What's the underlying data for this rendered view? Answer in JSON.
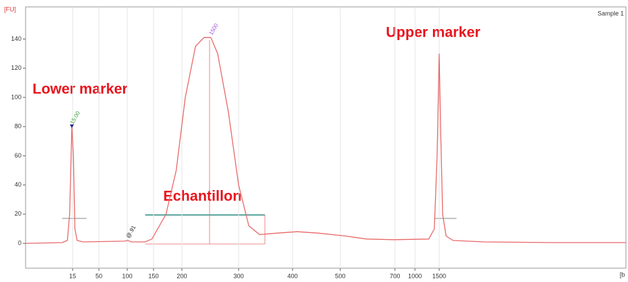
{
  "chart_data": {
    "type": "line",
    "y_label": "[FU]",
    "x_label": "[b",
    "sample": "Sample 1",
    "annotations": [
      "Lower marker",
      "Echantillon",
      "Upper marker"
    ],
    "peak_labels": [
      "15.00",
      "@.91",
      "1500"
    ],
    "xlim": [
      -48,
      5360
    ],
    "xticks": [
      15,
      50,
      100,
      150,
      200,
      300,
      400,
      500,
      700,
      1000,
      1500
    ],
    "ylim": [
      -17,
      162
    ],
    "yticks": [
      0,
      20,
      40,
      60,
      80,
      100,
      120,
      140
    ],
    "grid": true,
    "series": [
      {
        "name": "Sample 1",
        "color": "#e86a6a",
        "x": [
          -48,
          1,
          8,
          11,
          14,
          16,
          18,
          21,
          29,
          95,
          101,
          108,
          134,
          147,
          172,
          190,
          206,
          224,
          239,
          251,
          263,
          282,
          300,
          319,
          339,
          371,
          410,
          454,
          520,
          596,
          697,
          1286,
          1400,
          1457,
          1500,
          1529,
          1571,
          1643,
          1786,
          2429,
          3857,
          5360
        ],
        "values": [
          0,
          0.5,
          2,
          20,
          80,
          60,
          10,
          2,
          1,
          1.5,
          2,
          1,
          1,
          3,
          20,
          50,
          100,
          135,
          141,
          141,
          130,
          90,
          40,
          12,
          6,
          7,
          8,
          7,
          5,
          3,
          2.5,
          3,
          10,
          60,
          130,
          80,
          20,
          5,
          2,
          1,
          0.5,
          0.5
        ]
      }
    ]
  }
}
